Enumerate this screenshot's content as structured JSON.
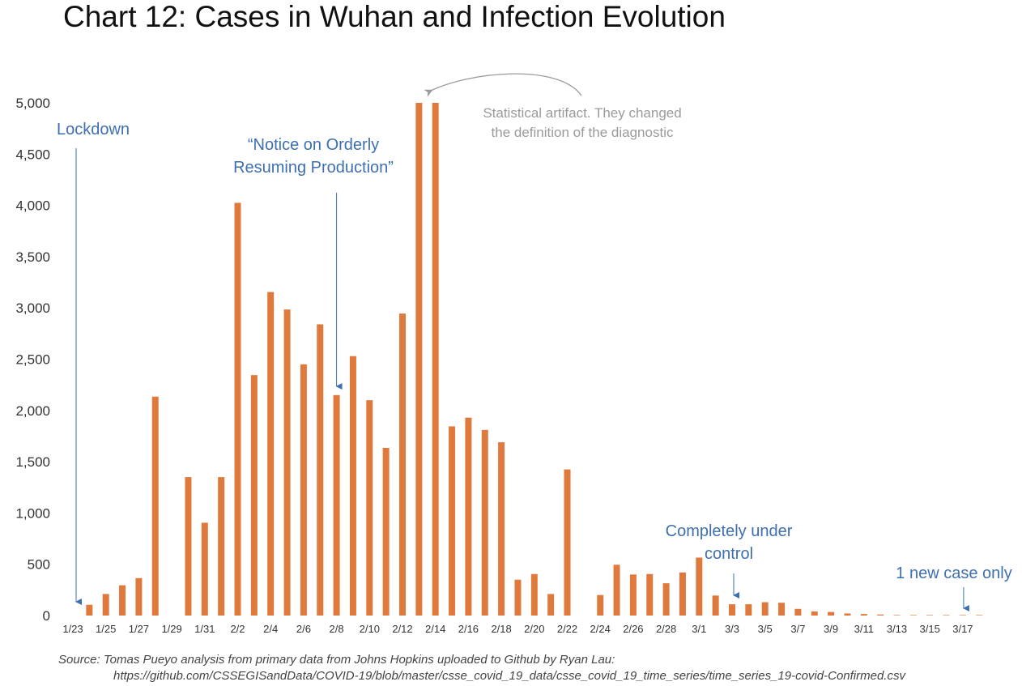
{
  "title": "Chart 12: Cases in Wuhan and Infection Evolution",
  "source": {
    "line1": "Source: Tomas Pueyo analysis from primary data from Johns Hopkins uploaded to Github by Ryan Lau:",
    "line2": "https://github.com/CSSEGISandData/COVID-19/blob/master/csse_covid_19_data/csse_covid_19_time_series/time_series_19-covid-Confirmed.csv"
  },
  "colors": {
    "bar": "#e07a3c",
    "annotation": "#3e6fb0",
    "artifact": "#9a9a9a",
    "axis_text": "#333333"
  },
  "chart_data": {
    "type": "bar",
    "categories": [
      "1/23",
      "1/24",
      "1/25",
      "1/26",
      "1/27",
      "1/28",
      "1/29",
      "1/30",
      "1/31",
      "2/1",
      "2/2",
      "2/3",
      "2/4",
      "2/5",
      "2/6",
      "2/7",
      "2/8",
      "2/9",
      "2/10",
      "2/11",
      "2/12",
      "2/13",
      "2/14",
      "2/15",
      "2/16",
      "2/17",
      "2/18",
      "2/19",
      "2/20",
      "2/21",
      "2/22",
      "2/23",
      "2/24",
      "2/25",
      "2/26",
      "2/27",
      "2/28",
      "2/29",
      "3/1",
      "3/2",
      "3/3",
      "3/4",
      "3/5",
      "3/6",
      "3/7",
      "3/8",
      "3/9",
      "3/10",
      "3/11",
      "3/12",
      "3/13",
      "3/14",
      "3/15",
      "3/16",
      "3/17",
      "3/18"
    ],
    "tick_labels": [
      "1/23",
      "1/25",
      "1/27",
      "1/29",
      "1/31",
      "2/2",
      "2/4",
      "2/6",
      "2/8",
      "2/10",
      "2/12",
      "2/14",
      "2/16",
      "2/18",
      "2/20",
      "2/22",
      "2/24",
      "2/26",
      "2/28",
      "3/1",
      "3/3",
      "3/5",
      "3/7",
      "3/9",
      "3/11",
      "3/13",
      "3/15",
      "3/17"
    ],
    "series": [
      {
        "values": [
          0,
          105,
          210,
          295,
          365,
          2135,
          0,
          1350,
          905,
          1350,
          4025,
          2345,
          3155,
          2985,
          2450,
          2840,
          2150,
          2530,
          2100,
          1635,
          2945,
          5000,
          5000,
          1845,
          1930,
          1810,
          1690,
          350,
          405,
          210,
          1425,
          0,
          200,
          495,
          400,
          405,
          315,
          420,
          565,
          195,
          110,
          110,
          130,
          125,
          65,
          40,
          35,
          20,
          15,
          10,
          5,
          5,
          5,
          5,
          5,
          5
        ]
      }
    ],
    "ylim": [
      0,
      5000
    ],
    "yticks": [
      0,
      500,
      1000,
      1500,
      2000,
      2500,
      3000,
      3500,
      4000,
      4500,
      5000
    ],
    "ytick_labels": [
      "0",
      "500",
      "1,000",
      "1,500",
      "2,000",
      "2,500",
      "3,000",
      "3,500",
      "4,000",
      "4,500",
      "5,000"
    ],
    "grid": false,
    "annotations": [
      {
        "id": "lockdown",
        "text": [
          "Lockdown"
        ],
        "date": "1/23"
      },
      {
        "id": "notice",
        "text": [
          "“Notice on Orderly",
          "Resuming Production”"
        ],
        "date": "2/8"
      },
      {
        "id": "artifact",
        "text": [
          "Statistical artifact. They changed",
          "the definition of the diagnostic"
        ],
        "date": "2/13"
      },
      {
        "id": "control",
        "text": [
          "Completely under",
          "control"
        ],
        "date": "3/3"
      },
      {
        "id": "newcase",
        "text": [
          "1 new case only"
        ],
        "date": "3/17"
      }
    ]
  }
}
